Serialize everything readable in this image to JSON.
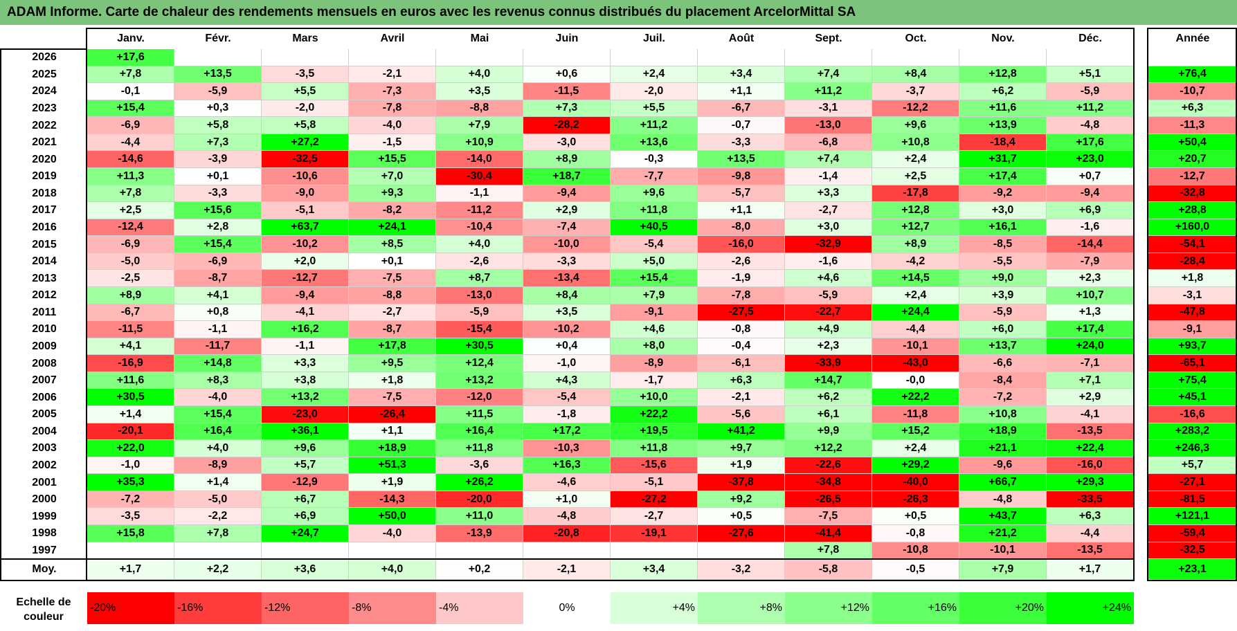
{
  "title": "ADAM Informe. Carte de chaleur des rendements mensuels en euros avec les revenus connus distribués du placement ArcelorMittal SA",
  "chart_data": {
    "type": "heatmap",
    "title": "ADAM Informe. Carte de chaleur des rendements mensuels en euros avec les revenus connus distribués du placement ArcelorMittal SA",
    "months": [
      "Janv.",
      "Févr.",
      "Mars",
      "Avril",
      "Mai",
      "Juin",
      "Juil.",
      "Août",
      "Sept.",
      "Oct.",
      "Nov.",
      "Déc."
    ],
    "year_header": "Année",
    "rows": [
      {
        "year": "2026",
        "values": [
          "+17,6",
          "",
          "",
          "",
          "",
          "",
          "",
          "",
          "",
          "",
          "",
          ""
        ],
        "annual": ""
      },
      {
        "year": "2025",
        "values": [
          "+7,8",
          "+13,5",
          "-3,5",
          "-2,1",
          "+4,0",
          "+0,6",
          "+2,4",
          "+3,4",
          "+7,4",
          "+8,4",
          "+12,8",
          "+5,1"
        ],
        "annual": "+76,4"
      },
      {
        "year": "2024",
        "values": [
          "-0,1",
          "-5,9",
          "+5,5",
          "-7,3",
          "+3,5",
          "-11,5",
          "-2,0",
          "+1,1",
          "+11,2",
          "-3,7",
          "+6,2",
          "-5,9"
        ],
        "annual": "-10,7"
      },
      {
        "year": "2023",
        "values": [
          "+15,4",
          "+0,3",
          "-2,0",
          "-7,8",
          "-8,8",
          "+7,3",
          "+5,5",
          "-6,7",
          "-3,1",
          "-12,2",
          "+11,6",
          "+11,2"
        ],
        "annual": "+6,3"
      },
      {
        "year": "2022",
        "values": [
          "-6,9",
          "+5,8",
          "+5,8",
          "-4,0",
          "+7,9",
          "-28,2",
          "+11,2",
          "-0,7",
          "-13,0",
          "+9,6",
          "+13,9",
          "-4,8"
        ],
        "annual": "-11,3"
      },
      {
        "year": "2021",
        "values": [
          "-4,4",
          "+7,3",
          "+27,2",
          "-1,5",
          "+10,9",
          "-3,0",
          "+13,6",
          "-3,3",
          "-6,8",
          "+10,8",
          "-18,4",
          "+17,6"
        ],
        "annual": "+50,4"
      },
      {
        "year": "2020",
        "values": [
          "-14,6",
          "-3,9",
          "-32,5",
          "+15,5",
          "-14,0",
          "+8,9",
          "-0,3",
          "+13,5",
          "+7,4",
          "+2,4",
          "+31,7",
          "+23,0"
        ],
        "annual": "+20,7"
      },
      {
        "year": "2019",
        "values": [
          "+11,3",
          "+0,1",
          "-10,6",
          "+7,0",
          "-30,4",
          "+18,7",
          "-7,7",
          "-9,8",
          "-1,4",
          "+2,5",
          "+17,4",
          "+0,7"
        ],
        "annual": "-12,7"
      },
      {
        "year": "2018",
        "values": [
          "+7,8",
          "-3,3",
          "-9,0",
          "+9,3",
          "-1,1",
          "-9,4",
          "+9,6",
          "-5,7",
          "+3,3",
          "-17,8",
          "-9,2",
          "-9,4"
        ],
        "annual": "-32,8"
      },
      {
        "year": "2017",
        "values": [
          "+2,5",
          "+15,6",
          "-5,1",
          "-8,2",
          "-11,2",
          "+2,9",
          "+11,8",
          "+1,1",
          "-2,7",
          "+12,8",
          "+3,0",
          "+6,9"
        ],
        "annual": "+28,8"
      },
      {
        "year": "2016",
        "values": [
          "-12,4",
          "+2,8",
          "+63,7",
          "+24,1",
          "-10,4",
          "-7,4",
          "+40,5",
          "-8,0",
          "+3,0",
          "+12,7",
          "+16,1",
          "-1,6"
        ],
        "annual": "+160,0"
      },
      {
        "year": "2015",
        "values": [
          "-6,9",
          "+15,4",
          "-10,2",
          "+8,5",
          "+4,0",
          "-10,0",
          "-5,4",
          "-16,0",
          "-32,9",
          "+8,9",
          "-8,5",
          "-14,4"
        ],
        "annual": "-54,1"
      },
      {
        "year": "2014",
        "values": [
          "-5,0",
          "-6,9",
          "+2,0",
          "+0,1",
          "-2,6",
          "-3,3",
          "+5,0",
          "-2,6",
          "-1,6",
          "-4,2",
          "-5,5",
          "-7,9"
        ],
        "annual": "-28,4"
      },
      {
        "year": "2013",
        "values": [
          "-2,5",
          "-8,7",
          "-12,7",
          "-7,5",
          "+8,7",
          "-13,4",
          "+15,4",
          "-1,9",
          "+4,6",
          "+14,5",
          "+9,0",
          "+2,3"
        ],
        "annual": "+1,8"
      },
      {
        "year": "2012",
        "values": [
          "+8,9",
          "+4,1",
          "-9,4",
          "-8,8",
          "-13,0",
          "+8,4",
          "+7,9",
          "-7,8",
          "-5,9",
          "+2,4",
          "+3,9",
          "+10,7"
        ],
        "annual": "-3,1"
      },
      {
        "year": "2011",
        "values": [
          "-6,7",
          "+0,8",
          "-4,1",
          "-2,7",
          "-5,9",
          "+3,5",
          "-9,1",
          "-27,5",
          "-22,7",
          "+24,4",
          "-5,9",
          "+1,3"
        ],
        "annual": "-47,8"
      },
      {
        "year": "2010",
        "values": [
          "-11,5",
          "-1,1",
          "+16,2",
          "-8,7",
          "-15,4",
          "-10,2",
          "+4,6",
          "-0,8",
          "+4,9",
          "-4,4",
          "+6,0",
          "+17,4"
        ],
        "annual": "-9,1"
      },
      {
        "year": "2009",
        "values": [
          "+4,1",
          "-11,7",
          "-1,1",
          "+17,8",
          "+30,5",
          "+0,4",
          "+8,0",
          "-0,4",
          "+2,3",
          "-10,1",
          "+13,7",
          "+24,0"
        ],
        "annual": "+93,7"
      },
      {
        "year": "2008",
        "values": [
          "-16,9",
          "+14,8",
          "+3,3",
          "+9,5",
          "+12,4",
          "-1,0",
          "-8,9",
          "-6,1",
          "-33,9",
          "-43,0",
          "-6,6",
          "-7,1"
        ],
        "annual": "-65,1"
      },
      {
        "year": "2007",
        "values": [
          "+11,6",
          "+8,3",
          "+3,8",
          "+1,8",
          "+13,2",
          "+4,3",
          "-1,7",
          "+6,3",
          "+14,7",
          "-0,0",
          "-8,4",
          "+7,1"
        ],
        "annual": "+75,4"
      },
      {
        "year": "2006",
        "values": [
          "+30,5",
          "-4,0",
          "+13,2",
          "-7,5",
          "-12,0",
          "-5,4",
          "+10,0",
          "-2,1",
          "+6,2",
          "+22,2",
          "-7,2",
          "+2,9"
        ],
        "annual": "+45,1"
      },
      {
        "year": "2005",
        "values": [
          "+1,4",
          "+15,4",
          "-23,0",
          "-26,4",
          "+11,5",
          "-1,8",
          "+22,2",
          "-5,6",
          "+6,1",
          "-11,8",
          "+10,8",
          "-4,1"
        ],
        "annual": "-16,6"
      },
      {
        "year": "2004",
        "values": [
          "-20,1",
          "+16,4",
          "+36,1",
          "+1,1",
          "+16,4",
          "+17,2",
          "+19,5",
          "+41,2",
          "+9,9",
          "+15,2",
          "+18,9",
          "-13,5"
        ],
        "annual": "+283,2"
      },
      {
        "year": "2003",
        "values": [
          "+22,0",
          "+4,0",
          "+9,6",
          "+18,9",
          "+11,8",
          "-10,3",
          "+11,8",
          "+9,7",
          "+12,2",
          "+2,4",
          "+21,1",
          "+22,4"
        ],
        "annual": "+246,3"
      },
      {
        "year": "2002",
        "values": [
          "-1,0",
          "-8,9",
          "+5,7",
          "+51,3",
          "-3,6",
          "+16,3",
          "-15,6",
          "+1,9",
          "-22,6",
          "+29,2",
          "-9,6",
          "-16,0"
        ],
        "annual": "+5,7"
      },
      {
        "year": "2001",
        "values": [
          "+35,3",
          "+1,4",
          "-12,9",
          "+1,9",
          "+26,2",
          "-4,6",
          "-5,1",
          "-37,8",
          "-34,8",
          "-40,0",
          "+66,7",
          "+29,3"
        ],
        "annual": "-27,1"
      },
      {
        "year": "2000",
        "values": [
          "-7,2",
          "-5,0",
          "+6,7",
          "-14,3",
          "-20,0",
          "+1,0",
          "-27,2",
          "+9,2",
          "-26,5",
          "-26,3",
          "-4,8",
          "-33,5"
        ],
        "annual": "-81,5"
      },
      {
        "year": "1999",
        "values": [
          "-3,5",
          "-2,2",
          "+6,9",
          "+50,0",
          "+11,0",
          "-4,8",
          "-2,7",
          "+0,5",
          "-7,5",
          "+0,5",
          "+43,7",
          "+6,3"
        ],
        "annual": "+121,1"
      },
      {
        "year": "1998",
        "values": [
          "+15,8",
          "+7,8",
          "+24,7",
          "-4,0",
          "-13,9",
          "-20,8",
          "-19,1",
          "-27,6",
          "-41,4",
          "-0,8",
          "+21,2",
          "-4,4"
        ],
        "annual": "-59,4"
      },
      {
        "year": "1997",
        "values": [
          "",
          "",
          "",
          "",
          "",
          "",
          "",
          "",
          "+7,8",
          "-10,8",
          "-10,1",
          "-13,5"
        ],
        "annual": "-32,5"
      }
    ],
    "average": {
      "label": "Moy.",
      "values": [
        "+1,7",
        "+2,2",
        "+3,6",
        "+4,0",
        "+0,2",
        "-2,1",
        "+3,4",
        "-3,2",
        "-5,8",
        "-0,5",
        "+7,9",
        "+1,7"
      ],
      "annual": "+23,1"
    },
    "color_scale": {
      "label": "Echelle de couleur",
      "steps": [
        "-20%",
        "-16%",
        "-12%",
        "-8%",
        "-4%",
        "0%",
        "+4%",
        "+8%",
        "+12%",
        "+16%",
        "+20%",
        "+24%"
      ],
      "colors": [
        "#ff0000",
        "#ff3c3c",
        "#ff6464",
        "#ff8c8c",
        "#ffc8c8",
        "#ffffff",
        "#d8ffd8",
        "#b0ffb0",
        "#8cff8c",
        "#64ff64",
        "#3cff3c",
        "#00ff00"
      ]
    }
  }
}
